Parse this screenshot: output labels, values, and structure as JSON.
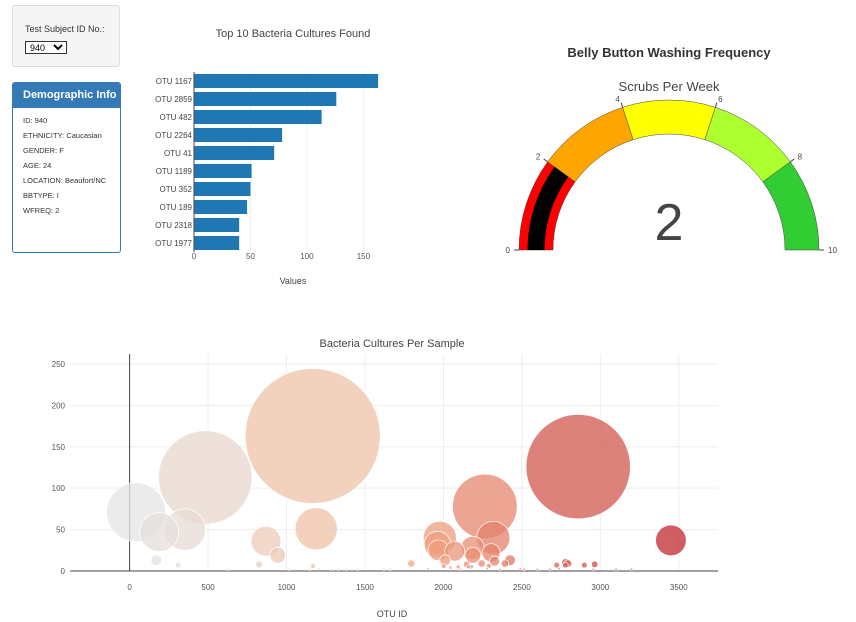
{
  "selector": {
    "label": "Test Subject ID No.:",
    "selected": "940"
  },
  "demographics": {
    "title": "Demographic Info",
    "items": [
      "ID: 940",
      "ETHNICITY: Caucasian",
      "GENDER: F",
      "AGE: 24",
      "LOCATION: Beaufort/NC",
      "BBTYPE: I",
      "WFREQ: 2"
    ]
  },
  "chart_data": [
    {
      "type": "bar",
      "orientation": "horizontal",
      "title": "Top 10 Bacteria Cultures Found",
      "xlabel": "Values",
      "ylabel": "",
      "categories": [
        "OTU 1167",
        "OTU 2859",
        "OTU 482",
        "OTU 2264",
        "OTU 41",
        "OTU 1189",
        "OTU 352",
        "OTU 189",
        "OTU 2318",
        "OTU 1977"
      ],
      "values": [
        163,
        126,
        113,
        78,
        71,
        51,
        50,
        47,
        40,
        40
      ],
      "xlim": [
        0,
        170
      ],
      "xticks": [
        0,
        50,
        100,
        150
      ],
      "color": "#1f77b4"
    },
    {
      "type": "gauge",
      "title": "Belly Button Washing Frequency",
      "subtitle": "Scrubs Per Week",
      "value": 2,
      "range": [
        0,
        10
      ],
      "tick_labels": [
        "0",
        "2",
        "4",
        "6",
        "8",
        "10"
      ],
      "steps": [
        {
          "range": [
            0,
            2
          ],
          "color": "#ff0000"
        },
        {
          "range": [
            2,
            4
          ],
          "color": "#ffa500"
        },
        {
          "range": [
            4,
            6
          ],
          "color": "#ffff00"
        },
        {
          "range": [
            6,
            8
          ],
          "color": "#adff2f"
        },
        {
          "range": [
            8,
            10
          ],
          "color": "#32cd32"
        }
      ],
      "bar_color": "#000000"
    },
    {
      "type": "scatter",
      "title": "Bacteria Cultures Per Sample",
      "xlabel": "OTU ID",
      "ylabel": "",
      "xlim": [
        -380,
        3750
      ],
      "ylim": [
        0,
        262
      ],
      "xticks": [
        0,
        500,
        1000,
        1500,
        2000,
        2500,
        3000,
        3500
      ],
      "yticks": [
        0,
        50,
        100,
        150,
        200,
        250
      ],
      "grid": true,
      "colorscale": [
        "#e4e4e4",
        "#f4b08a",
        "#c0282f"
      ],
      "points": [
        {
          "x": 41,
          "y": 71
        },
        {
          "x": 189,
          "y": 47
        },
        {
          "x": 352,
          "y": 50
        },
        {
          "x": 482,
          "y": 113
        },
        {
          "x": 1167,
          "y": 163
        },
        {
          "x": 1189,
          "y": 51
        },
        {
          "x": 869,
          "y": 36
        },
        {
          "x": 944,
          "y": 19
        },
        {
          "x": 2859,
          "y": 126
        },
        {
          "x": 2264,
          "y": 78
        },
        {
          "x": 2318,
          "y": 40
        },
        {
          "x": 1977,
          "y": 40
        },
        {
          "x": 1962,
          "y": 32
        },
        {
          "x": 1968,
          "y": 25
        },
        {
          "x": 2011,
          "y": 13
        },
        {
          "x": 2072,
          "y": 24
        },
        {
          "x": 2186,
          "y": 28
        },
        {
          "x": 2188,
          "y": 19
        },
        {
          "x": 2304,
          "y": 22
        },
        {
          "x": 2326,
          "y": 12
        },
        {
          "x": 2425,
          "y": 13
        },
        {
          "x": 2392,
          "y": 9
        },
        {
          "x": 2779,
          "y": 10
        },
        {
          "x": 2777,
          "y": 7
        },
        {
          "x": 2795,
          "y": 9
        },
        {
          "x": 2722,
          "y": 7
        },
        {
          "x": 2736,
          "y": 3
        },
        {
          "x": 3450,
          "y": 37
        },
        {
          "x": 2964,
          "y": 8
        },
        {
          "x": 2898,
          "y": 7
        },
        {
          "x": 1795,
          "y": 9
        },
        {
          "x": 2002,
          "y": 6
        },
        {
          "x": 2045,
          "y": 4
        },
        {
          "x": 2244,
          "y": 9
        },
        {
          "x": 2289,
          "y": 6
        },
        {
          "x": 2280,
          "y": 3
        },
        {
          "x": 2178,
          "y": 5
        },
        {
          "x": 2110,
          "y": 2
        },
        {
          "x": 1901,
          "y": 3
        },
        {
          "x": 2094,
          "y": 5
        },
        {
          "x": 2148,
          "y": 8
        },
        {
          "x": 2159,
          "y": 5
        },
        {
          "x": 2359,
          "y": 2
        },
        {
          "x": 2514,
          "y": 2
        },
        {
          "x": 825,
          "y": 8
        },
        {
          "x": 1169,
          "y": 6
        },
        {
          "x": 1208,
          "y": 3
        },
        {
          "x": 1289,
          "y": 2
        },
        {
          "x": 1330,
          "y": 2
        },
        {
          "x": 170,
          "y": 13
        },
        {
          "x": 310,
          "y": 7
        },
        {
          "x": 625,
          "y": 2
        },
        {
          "x": 1013,
          "y": 2
        },
        {
          "x": 1150,
          "y": 2
        },
        {
          "x": 1380,
          "y": 2
        },
        {
          "x": 1455,
          "y": 2
        },
        {
          "x": 1620,
          "y": 2
        },
        {
          "x": 1660,
          "y": 2
        },
        {
          "x": 2600,
          "y": 2
        },
        {
          "x": 2680,
          "y": 2
        },
        {
          "x": 3100,
          "y": 2
        },
        {
          "x": 3200,
          "y": 2
        },
        {
          "x": 2955,
          "y": 2
        },
        {
          "x": 2490,
          "y": 3
        }
      ]
    }
  ]
}
